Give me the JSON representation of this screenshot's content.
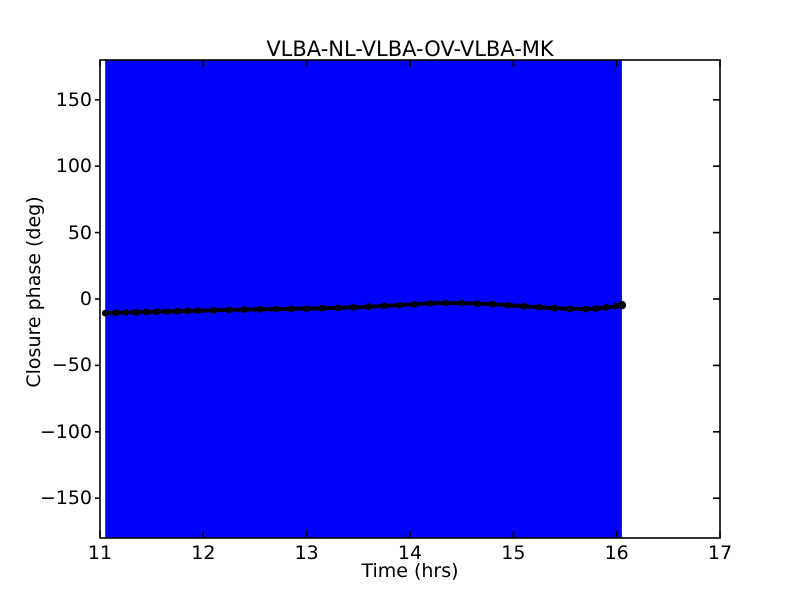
{
  "figure": {
    "background": "#ffffff"
  },
  "chart_data": {
    "type": "line",
    "title": "VLBA-NL-VLBA-OV-VLBA-MK",
    "xlabel": "Time (hrs)",
    "ylabel": "Closure phase (deg)",
    "xlim": [
      11,
      17
    ],
    "ylim": [
      -180,
      180
    ],
    "grid": false,
    "legend": false,
    "axis_color": "#000000",
    "x_ticks": [
      11,
      12,
      13,
      14,
      15,
      16,
      17
    ],
    "x_tick_labels": [
      "11",
      "12",
      "13",
      "14",
      "15",
      "16",
      "17"
    ],
    "y_ticks": [
      150,
      100,
      50,
      0,
      -50,
      -100,
      -150
    ],
    "y_tick_labels": [
      "150",
      "100",
      "50",
      "0",
      "−50",
      "−100",
      "−150"
    ],
    "span": {
      "label": "observed-time-range-highlight",
      "x0": 11.05,
      "x1": 16.05,
      "color": "#0000ff"
    },
    "series": [
      {
        "name": "closure-phase",
        "color": "#000000",
        "marker": "circle",
        "x": [
          11.05,
          11.15,
          11.25,
          11.35,
          11.45,
          11.55,
          11.65,
          11.75,
          11.85,
          11.95,
          12.1,
          12.25,
          12.4,
          12.55,
          12.7,
          12.85,
          13.0,
          13.15,
          13.3,
          13.45,
          13.6,
          13.75,
          13.9,
          14.05,
          14.2,
          14.35,
          14.5,
          14.65,
          14.8,
          14.95,
          15.1,
          15.25,
          15.4,
          15.55,
          15.7,
          15.8,
          15.9,
          16.0,
          16.05
        ],
        "y": [
          -10.6,
          -10.4,
          -10.2,
          -10.0,
          -9.8,
          -9.6,
          -9.4,
          -9.2,
          -9.0,
          -8.8,
          -8.5,
          -8.2,
          -8.0,
          -7.8,
          -7.6,
          -7.4,
          -7.2,
          -7.0,
          -6.7,
          -6.3,
          -5.8,
          -5.2,
          -4.6,
          -3.9,
          -3.3,
          -3.0,
          -3.1,
          -3.5,
          -3.9,
          -4.6,
          -5.4,
          -6.2,
          -6.9,
          -7.4,
          -7.6,
          -7.2,
          -6.3,
          -5.3,
          -4.6
        ]
      }
    ]
  }
}
